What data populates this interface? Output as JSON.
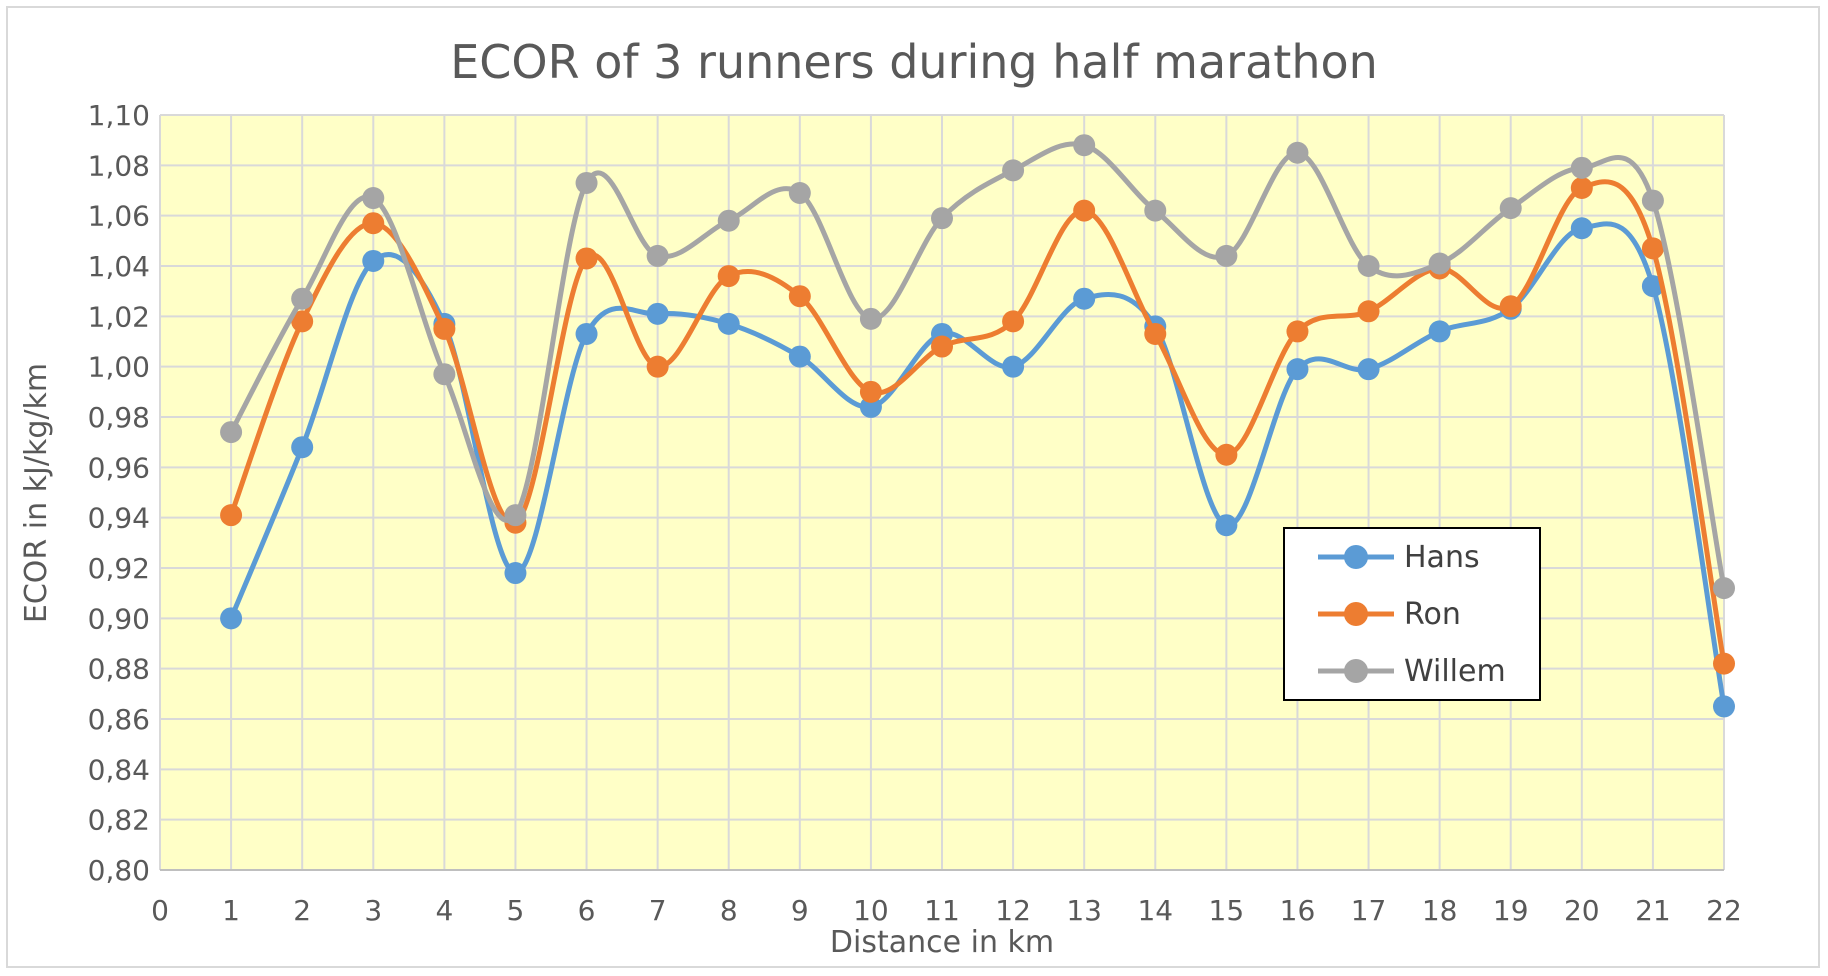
{
  "chart_data": {
    "type": "line",
    "title": "ECOR of 3 runners during half marathon",
    "xlabel": "Distance in km",
    "ylabel": "ECOR in kJ/kg/km",
    "x_ticks": [
      "0",
      "1",
      "2",
      "3",
      "4",
      "5",
      "6",
      "7",
      "8",
      "9",
      "10",
      "11",
      "12",
      "13",
      "14",
      "15",
      "16",
      "17",
      "18",
      "19",
      "20",
      "21",
      "22"
    ],
    "xlim": [
      0,
      22
    ],
    "ylim": [
      0.8,
      1.1
    ],
    "y_ticks": [
      "0,80",
      "0,82",
      "0,84",
      "0,86",
      "0,88",
      "0,90",
      "0,92",
      "0,94",
      "0,96",
      "0,98",
      "1,00",
      "1,02",
      "1,04",
      "1,06",
      "1,08",
      "1,10"
    ],
    "x": [
      1,
      2,
      3,
      4,
      5,
      6,
      7,
      8,
      9,
      10,
      11,
      12,
      13,
      14,
      15,
      16,
      17,
      18,
      19,
      20,
      21,
      22
    ],
    "series": [
      {
        "name": "Hans",
        "color": "#5b9bd5",
        "values": [
          0.9,
          0.968,
          1.042,
          1.017,
          0.918,
          1.013,
          1.021,
          1.017,
          1.004,
          0.984,
          1.013,
          1.0,
          1.027,
          1.016,
          0.937,
          0.999,
          0.999,
          1.014,
          1.023,
          1.055,
          1.032,
          0.865
        ]
      },
      {
        "name": "Ron",
        "color": "#ed7d31",
        "values": [
          0.941,
          1.018,
          1.057,
          1.015,
          0.938,
          1.043,
          1.0,
          1.036,
          1.028,
          0.99,
          1.008,
          1.018,
          1.062,
          1.013,
          0.965,
          1.014,
          1.022,
          1.039,
          1.024,
          1.071,
          1.047,
          0.882
        ]
      },
      {
        "name": "Willem",
        "color": "#a5a5a5",
        "values": [
          0.974,
          1.027,
          1.067,
          0.997,
          0.941,
          1.073,
          1.044,
          1.058,
          1.069,
          1.019,
          1.059,
          1.078,
          1.088,
          1.062,
          1.044,
          1.085,
          1.04,
          1.041,
          1.063,
          1.079,
          1.066,
          0.912
        ]
      }
    ],
    "grid": true,
    "plot_background": "#ffffc7",
    "legend_position": "right"
  }
}
